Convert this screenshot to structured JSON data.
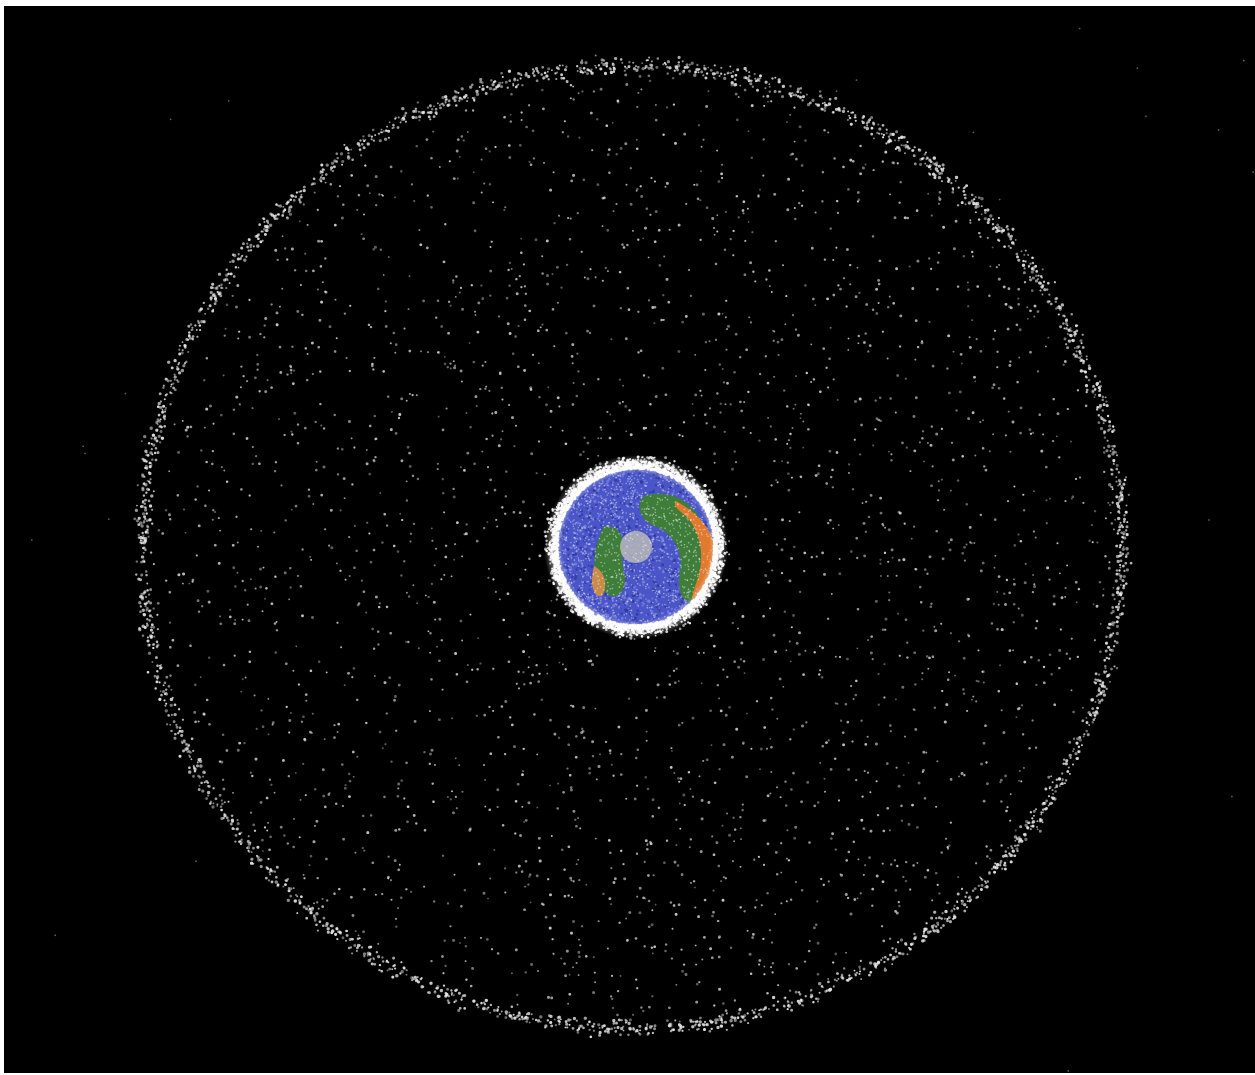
{
  "scene": {
    "subject": "earth-with-orbital-debris-cloud",
    "colors": {
      "space": "#000000",
      "debris": "#e8e8e8",
      "ocean": "#4a56c8",
      "ocean_dark": "#2c3596",
      "land_green": "#3f7d3a",
      "land_tan": "#c98a4a",
      "land_orange": "#e07a2e",
      "pole_gray": "#b8b8b8",
      "halo": "#ffffff"
    }
  }
}
